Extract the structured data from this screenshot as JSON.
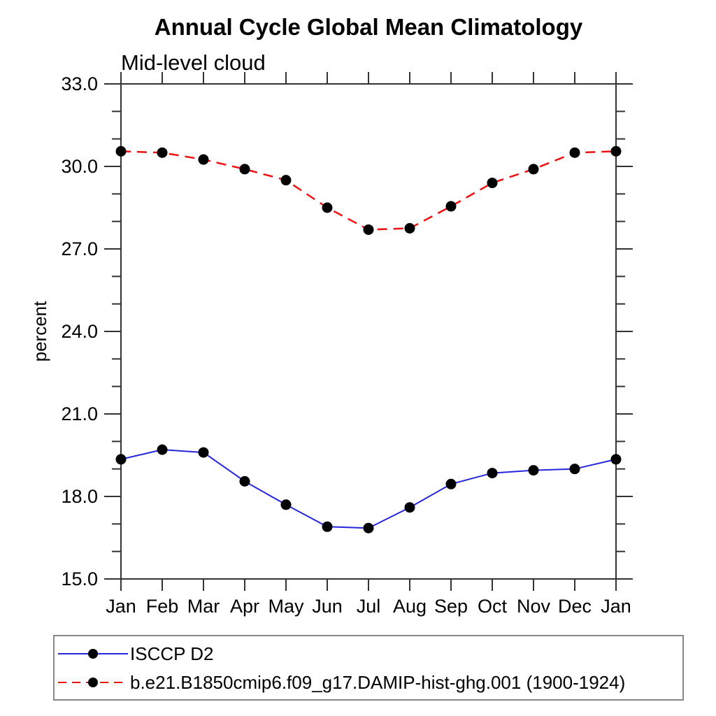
{
  "page": {
    "background": "#ffffff"
  },
  "chart_data": {
    "type": "line",
    "title": "Annual Cycle Global Mean Climatology",
    "subtitle": "Mid-level cloud",
    "ylabel": "percent",
    "x_categories": [
      "Jan",
      "Feb",
      "Mar",
      "Apr",
      "May",
      "Jun",
      "Jul",
      "Aug",
      "Sep",
      "Oct",
      "Nov",
      "Dec",
      "Jan"
    ],
    "ylim": [
      15.0,
      33.0
    ],
    "ytick_major_step": 3.0,
    "ytick_minor_step": 1.0,
    "ytick_labels": [
      "15.0",
      "18.0",
      "21.0",
      "24.0",
      "27.0",
      "30.0",
      "33.0"
    ],
    "grid": false,
    "axis_color": "#333333",
    "marker_color": "#000000",
    "legend_position": "bottom-left",
    "series": [
      {
        "name": "ISCCP D2",
        "color": "#2626dd",
        "line_style": "solid",
        "values": [
          19.35,
          19.7,
          19.6,
          18.55,
          17.7,
          16.9,
          16.85,
          17.6,
          18.45,
          18.85,
          18.95,
          19.0,
          19.35
        ]
      },
      {
        "name": "b.e21.B1850cmip6.f09_g17.DAMIP-hist-ghg.001 (1900-1924)",
        "color": "#ee1111",
        "line_style": "dashed",
        "values": [
          30.55,
          30.5,
          30.25,
          29.9,
          29.5,
          28.5,
          27.7,
          27.75,
          28.55,
          29.4,
          29.9,
          30.5,
          30.55
        ]
      }
    ]
  }
}
